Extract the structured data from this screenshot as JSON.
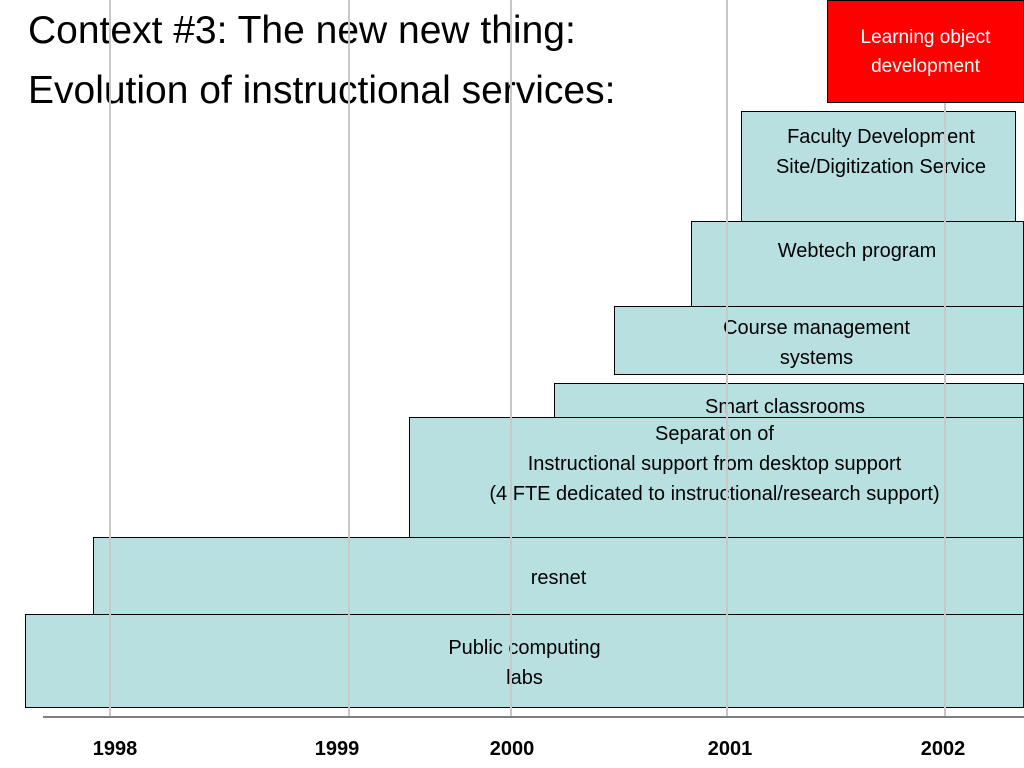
{
  "title_line_1": "Context #3: The new new thing:",
  "title_line_2": "Evolution of instructional services:",
  "services": [
    {
      "id": "public-computing-labs",
      "label": "Public computing\nlabs"
    },
    {
      "id": "resnet",
      "label": "resnet"
    },
    {
      "id": "separation",
      "label": "Separation of\nInstructional support from desktop support\n(4 FTE dedicated to instructional/research support)"
    },
    {
      "id": "smart-classrooms",
      "label": "Smart classrooms"
    },
    {
      "id": "course-management",
      "label": "Course management\nsystems"
    },
    {
      "id": "webtech",
      "label": "Webtech program"
    },
    {
      "id": "faculty-development",
      "label": "Faculty Development\nSite/Digitization Service"
    },
    {
      "id": "learning-object",
      "label": "Learning object\ndevelopment"
    }
  ],
  "years": [
    "1998",
    "1999",
    "2000",
    "2001",
    "2002"
  ],
  "colors": {
    "bar_fill": "#b9e0e1",
    "highlight_fill": "#ff0000",
    "highlight_text": "#ffffff",
    "gridline": "#c8c8c8",
    "baseline": "#7f7f7f"
  }
}
